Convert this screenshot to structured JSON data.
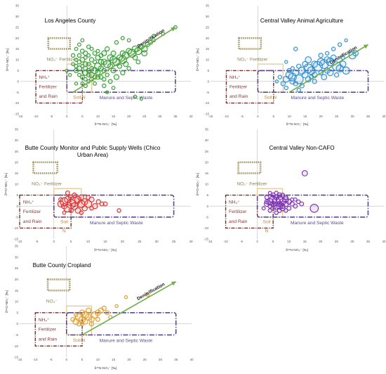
{
  "colors": {
    "fertilizer_box": "#a5996a",
    "fertilizer_text": "#8b7f52",
    "nh4_box": "#6d2f2f",
    "nh4_text": "#8b3a3a",
    "soil_box": "#e8c48a",
    "soil_text": "#c8862a",
    "manure_box": "#5b4a8a",
    "manure_text": "#5b4a8a",
    "arrow": "#70ad47",
    "axis": "#bfbfbf"
  },
  "labels": {
    "x_axis": "δ¹⁵N-NO₃⁻ [‰]",
    "y_axis": "δ¹⁸O-NO₃⁻ [‰]",
    "no3_fertilizer": "NO₃⁻ Fertilizer",
    "no3_only": "NO₃⁻",
    "nh4_line1": "NH₄⁺",
    "nh4_line2": "Fertilizer",
    "nh4_line3": "and Rain",
    "soil_line1": "Soil N",
    "soil_line2": "Soil",
    "soil_line3": "N",
    "manure": "Manure and Septic Waste",
    "denitrification": "Denitrification"
  },
  "chart_data": [
    {
      "type": "scatter",
      "title": "Los Angeles County",
      "series_color": "#3a9a3a",
      "xlim": [
        -15,
        40
      ],
      "ylim": [
        -15,
        35
      ],
      "xticks": [
        -15,
        -10,
        -5,
        0,
        5,
        10,
        15,
        20,
        25,
        30,
        35,
        40
      ],
      "yticks": [
        -15,
        -10,
        -5,
        0,
        5,
        10,
        15,
        20,
        25,
        30,
        35
      ],
      "show_xlabel": true,
      "no3_label": "full",
      "soil_label": "single",
      "arrow": [
        [
          2,
          -5
        ],
        [
          35,
          25
        ]
      ],
      "points": [
        [
          3,
          5,
          1.3
        ],
        [
          4,
          3,
          1
        ],
        [
          4,
          6,
          1.5
        ],
        [
          5,
          2,
          1.2
        ],
        [
          5,
          7,
          1
        ],
        [
          6,
          4,
          1.6
        ],
        [
          6,
          1,
          1
        ],
        [
          7,
          5,
          1.3
        ],
        [
          7,
          8,
          1.1
        ],
        [
          8,
          3,
          1.5
        ],
        [
          8,
          6,
          1.2
        ],
        [
          9,
          5,
          1.8
        ],
        [
          9,
          9,
          1.1
        ],
        [
          10,
          4,
          1.4
        ],
        [
          10,
          7,
          2
        ],
        [
          11,
          2,
          1.2
        ],
        [
          11,
          6,
          1.5
        ],
        [
          12,
          5,
          1.3
        ],
        [
          12,
          9,
          1.7
        ],
        [
          13,
          8,
          2.1
        ],
        [
          13,
          3,
          1.1
        ],
        [
          14,
          7,
          1.5
        ],
        [
          15,
          10,
          2
        ],
        [
          15,
          5,
          1.4
        ],
        [
          16,
          9,
          2.2
        ],
        [
          17,
          11,
          1.6
        ],
        [
          18,
          10,
          2.3
        ],
        [
          18,
          13,
          1.5
        ],
        [
          19,
          12,
          2
        ],
        [
          20,
          14,
          1.6
        ],
        [
          21,
          13,
          2.4
        ],
        [
          22,
          15,
          1.8
        ],
        [
          23,
          14,
          2.1
        ],
        [
          24,
          16,
          1.5
        ],
        [
          25,
          15,
          1.8
        ],
        [
          26,
          17,
          1.3
        ],
        [
          27,
          18,
          1.2
        ],
        [
          28,
          19,
          1
        ],
        [
          5,
          -1,
          1
        ],
        [
          6,
          -2,
          1.1
        ],
        [
          7,
          0,
          1
        ],
        [
          8,
          1,
          1.2
        ],
        [
          9,
          -1,
          1
        ],
        [
          10,
          2,
          1.3
        ],
        [
          12,
          -2,
          1.1
        ],
        [
          14,
          0,
          1.2
        ],
        [
          16,
          2,
          1.5
        ],
        [
          18,
          4,
          1.3
        ],
        [
          20,
          6,
          1.1
        ],
        [
          15,
          -3,
          1
        ],
        [
          3,
          10,
          1
        ],
        [
          4,
          12,
          1.1
        ],
        [
          6,
          11,
          1
        ],
        [
          5,
          14,
          1.2
        ],
        [
          7,
          12,
          1
        ],
        [
          8,
          15,
          1
        ],
        [
          2,
          8,
          1
        ],
        [
          1,
          3,
          0.9
        ],
        [
          0,
          5,
          0.9
        ],
        [
          11,
          12,
          1.2
        ],
        [
          10,
          14,
          1
        ],
        [
          13,
          15,
          1.3
        ],
        [
          16,
          18,
          1.1
        ],
        [
          20,
          19,
          1
        ],
        [
          3,
          -1,
          0.9
        ],
        [
          6,
          8,
          1.4
        ],
        [
          8,
          10,
          1.3
        ],
        [
          9,
          2,
          1.2
        ],
        [
          11,
          9,
          1.5
        ],
        [
          12,
          1,
          1.1
        ],
        [
          14,
          11,
          1.7
        ],
        [
          15,
          13,
          1.4
        ],
        [
          17,
          7,
          1.3
        ],
        [
          19,
          8,
          1.5
        ],
        [
          22,
          11,
          1.4
        ],
        [
          23,
          9,
          1.2
        ],
        [
          25,
          13,
          1.6
        ],
        [
          13,
          -5,
          0.9
        ],
        [
          22,
          -7,
          0.9
        ],
        [
          24,
          -8,
          0.9
        ],
        [
          18,
          20,
          1
        ],
        [
          28,
          21,
          1
        ],
        [
          31,
          22,
          1
        ],
        [
          35,
          25,
          1
        ],
        [
          2,
          12,
          1.1
        ],
        [
          4,
          17,
          1
        ],
        [
          5,
          19,
          1
        ],
        [
          3,
          15,
          1
        ],
        [
          7,
          16,
          1.1
        ],
        [
          9,
          13,
          1.2
        ],
        [
          6,
          13,
          1.3
        ],
        [
          10,
          11,
          1.4
        ],
        [
          12,
          13,
          1.5
        ],
        [
          4,
          9,
          1.2
        ],
        [
          5,
          10,
          1.4
        ],
        [
          6,
          6,
          1.3
        ],
        [
          7,
          3,
          1.2
        ],
        [
          3,
          7,
          1.1
        ]
      ]
    },
    {
      "type": "scatter",
      "title": "Central Valley Animal Agriculture",
      "series_color": "#2e8fd0",
      "xlim": [
        -15,
        40
      ],
      "ylim": [
        -15,
        35
      ],
      "xticks": [
        -15,
        -10,
        -5,
        0,
        5,
        10,
        15,
        20,
        25,
        30,
        35,
        40
      ],
      "yticks": [
        -15,
        -10,
        -5,
        0,
        5,
        10,
        15,
        20,
        25,
        30,
        35
      ],
      "show_xlabel": true,
      "no3_label": "full",
      "soil_label": "single",
      "arrow": [
        [
          10,
          -5
        ],
        [
          35,
          17
        ]
      ],
      "points": [
        [
          9,
          1,
          1.8
        ],
        [
          10,
          3,
          2.1
        ],
        [
          11,
          2,
          2.3
        ],
        [
          12,
          4,
          1.8
        ],
        [
          13,
          1,
          2.6
        ],
        [
          14,
          5,
          2.1
        ],
        [
          15,
          3,
          1.8
        ],
        [
          16,
          6,
          2.6
        ],
        [
          17,
          5,
          2.3
        ],
        [
          18,
          8,
          1.8
        ],
        [
          19,
          7,
          2.8
        ],
        [
          20,
          9,
          2.1
        ],
        [
          21,
          8,
          2.6
        ],
        [
          22,
          10,
          1.8
        ],
        [
          23,
          9,
          2.3
        ],
        [
          24,
          11,
          1.6
        ],
        [
          25,
          7,
          2.6
        ],
        [
          26,
          6,
          2.1
        ],
        [
          27,
          8,
          1.8
        ],
        [
          30,
          12,
          2.1
        ],
        [
          31,
          13,
          1.6
        ],
        [
          8,
          -1,
          1.3
        ],
        [
          9,
          -3,
          1.1
        ],
        [
          11,
          0,
          1.6
        ],
        [
          12,
          -1,
          1.3
        ],
        [
          13,
          -4,
          1.1
        ],
        [
          14,
          -2,
          1.3
        ],
        [
          16,
          1,
          1.6
        ],
        [
          17,
          2,
          1.3
        ],
        [
          18,
          3,
          1.6
        ],
        [
          20,
          4,
          1.3
        ],
        [
          22,
          5,
          1.6
        ],
        [
          15,
          8,
          1.6
        ],
        [
          13,
          7,
          1.3
        ],
        [
          11,
          6,
          1.1
        ],
        [
          10,
          5,
          1.3
        ],
        [
          16,
          10,
          1.8
        ],
        [
          20,
          12,
          1.3
        ],
        [
          22,
          13,
          1.1
        ],
        [
          24,
          15,
          1.1
        ],
        [
          26,
          17,
          1.1
        ],
        [
          28,
          19,
          0.9
        ],
        [
          7,
          2,
          1.1
        ],
        [
          6,
          0,
          0.9
        ],
        [
          12,
          15,
          1.1
        ],
        [
          9,
          9,
          0.9
        ],
        [
          28,
          5,
          2.1
        ],
        [
          18,
          0,
          1.3
        ],
        [
          21,
          2,
          1.6
        ],
        [
          23,
          4,
          1.8
        ],
        [
          25,
          3,
          1.3
        ],
        [
          27,
          11,
          1.1
        ]
      ]
    },
    {
      "type": "scatter",
      "title": "Butte County Monitor and Public Supply Wells (Chico Urban Area)",
      "series_color": "#e03030",
      "xlim": [
        -10,
        40
      ],
      "ylim": [
        -15,
        35
      ],
      "xticks": [
        -10,
        -5,
        0,
        5,
        10,
        15,
        20,
        25,
        30,
        35,
        40
      ],
      "yticks": [
        -15,
        -10,
        -5,
        0,
        5,
        10,
        15,
        20,
        25,
        30,
        35
      ],
      "show_xlabel": true,
      "no3_label": "full",
      "soil_label": "split",
      "arrow": null,
      "points": [
        [
          2,
          1,
          1.8
        ],
        [
          3,
          2,
          2.4
        ],
        [
          3,
          0,
          1.6
        ],
        [
          4,
          3,
          1.9
        ],
        [
          4,
          -1,
          2.2
        ],
        [
          5,
          1,
          2.6
        ],
        [
          5,
          4,
          1.5
        ],
        [
          6,
          0,
          2
        ],
        [
          6,
          2,
          2.8
        ],
        [
          7,
          3,
          1.9
        ],
        [
          7,
          -2,
          1.6
        ],
        [
          8,
          1,
          2.2
        ],
        [
          8,
          4,
          1.5
        ],
        [
          9,
          2,
          1.8
        ],
        [
          9,
          -1,
          1.5
        ],
        [
          10,
          1,
          2.1
        ],
        [
          11,
          3,
          1.5
        ],
        [
          12,
          0,
          1.5
        ],
        [
          13,
          2,
          1.3
        ],
        [
          14,
          1,
          1.2
        ],
        [
          15,
          1,
          1.2
        ],
        [
          19,
          -2,
          1.1
        ],
        [
          4,
          6,
          1.2
        ],
        [
          6,
          5,
          1.3
        ],
        [
          8,
          -3,
          1.1
        ],
        [
          5,
          -2,
          1.3
        ],
        [
          3,
          -3,
          1
        ],
        [
          2,
          3,
          1.2
        ],
        [
          11,
          -1,
          1.1
        ],
        [
          10,
          4,
          1.2
        ]
      ]
    },
    {
      "type": "scatter",
      "title": "Central Valley Non-CAFO",
      "series_color": "#7b2fb4",
      "xlim": [
        -15,
        40
      ],
      "ylim": [
        -15,
        35
      ],
      "xticks": [
        -15,
        -10,
        -5,
        0,
        5,
        10,
        15,
        20,
        25,
        30,
        35,
        40
      ],
      "yticks": [
        -15,
        -10,
        -5,
        0,
        5,
        10,
        15,
        20,
        25,
        30,
        35
      ],
      "show_xlabel": true,
      "no3_label": "full",
      "soil_label": "split",
      "arrow": null,
      "points": [
        [
          3,
          1,
          1.5
        ],
        [
          4,
          2,
          1.9
        ],
        [
          4,
          0,
          1.2
        ],
        [
          5,
          3,
          2.2
        ],
        [
          5,
          1,
          1.6
        ],
        [
          5,
          -1,
          1.3
        ],
        [
          6,
          2,
          2.4
        ],
        [
          6,
          4,
          1.5
        ],
        [
          6,
          0,
          1.9
        ],
        [
          7,
          1,
          1.6
        ],
        [
          7,
          3,
          2
        ],
        [
          7,
          -2,
          1.2
        ],
        [
          8,
          2,
          1.8
        ],
        [
          8,
          0,
          1.4
        ],
        [
          9,
          1,
          1.6
        ],
        [
          9,
          4,
          1.2
        ],
        [
          10,
          2,
          1.5
        ],
        [
          11,
          1,
          1.3
        ],
        [
          12,
          0,
          1.2
        ],
        [
          13,
          2,
          1.1
        ],
        [
          14,
          1,
          1.2
        ],
        [
          15,
          15,
          1.6
        ],
        [
          18,
          -1,
          2.4
        ],
        [
          3,
          4,
          1.2
        ],
        [
          4,
          6,
          1
        ],
        [
          6,
          6,
          1.1
        ],
        [
          5,
          5,
          1.3
        ],
        [
          8,
          5,
          1.2
        ],
        [
          9,
          -2,
          1.1
        ],
        [
          11,
          3,
          1
        ],
        [
          2,
          -1,
          1
        ],
        [
          6,
          -3,
          1.1
        ],
        [
          10,
          -1,
          1.2
        ],
        [
          12,
          3,
          1
        ],
        [
          7,
          5,
          1.4
        ],
        [
          4,
          -2,
          1.1
        ],
        [
          3,
          2,
          1.3
        ],
        [
          8,
          -1,
          1.5
        ],
        [
          9,
          3,
          1.7
        ],
        [
          7,
          0,
          1.8
        ]
      ]
    },
    {
      "type": "scatter",
      "title": "Butte County Cropland",
      "series_color": "#e0a030",
      "xlim": [
        -15,
        40
      ],
      "ylim": [
        -15,
        35
      ],
      "xticks": [
        -15,
        -10,
        -5,
        0,
        5,
        10,
        15,
        20,
        25,
        30,
        35,
        40
      ],
      "yticks": [
        -15,
        -10,
        -5,
        0,
        5,
        10,
        15,
        20,
        25,
        30,
        35
      ],
      "show_xlabel": true,
      "no3_label": "short",
      "soil_label": "single",
      "arrow": [
        [
          5,
          -5
        ],
        [
          35,
          19
        ]
      ],
      "points": [
        [
          3,
          1,
          1.8
        ],
        [
          4,
          3,
          2.2
        ],
        [
          5,
          2,
          1.9
        ],
        [
          5,
          5,
          1.6
        ],
        [
          6,
          4,
          2
        ],
        [
          7,
          3,
          1.8
        ],
        [
          7,
          6,
          1.5
        ],
        [
          8,
          2,
          1.6
        ],
        [
          9,
          4,
          1.9
        ],
        [
          10,
          5,
          1.6
        ],
        [
          11,
          6,
          1.5
        ],
        [
          12,
          7,
          1.3
        ],
        [
          13,
          5,
          1.2
        ],
        [
          4,
          0,
          1.3
        ],
        [
          6,
          1,
          1.5
        ],
        [
          8,
          0,
          1.3
        ],
        [
          10,
          2,
          1.2
        ],
        [
          14,
          3,
          1
        ],
        [
          16,
          8,
          0.9
        ],
        [
          19,
          12,
          0.9
        ],
        [
          26,
          13,
          0.9
        ],
        [
          3,
          4,
          1.1
        ],
        [
          2,
          2,
          1.2
        ],
        [
          5,
          0,
          1.1
        ]
      ]
    }
  ]
}
